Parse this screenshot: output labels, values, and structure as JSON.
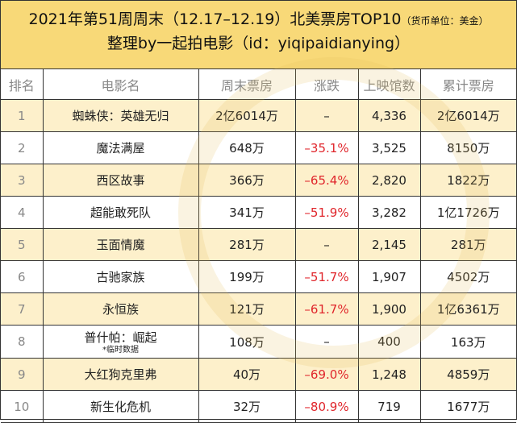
{
  "title": {
    "line1": "2021年第51周周末（12.17–12.19）北美票房TOP10",
    "currency_note": "（货币单位：美金）",
    "line2": "整理by一起拍电影（id：yiqipaidianying）"
  },
  "watermark": "一起拍电影",
  "columns": [
    "排名",
    "电影名",
    "周末票房",
    "涨跌",
    "上映馆数",
    "累计票房"
  ],
  "rows": [
    {
      "rank": "1",
      "name": "蜘蛛侠：英雄无归",
      "note": "",
      "weekend": "2亿6014万",
      "change": "–",
      "theaters": "4,336",
      "total": "2亿6014万"
    },
    {
      "rank": "2",
      "name": "魔法满屋",
      "note": "",
      "weekend": "648万",
      "change": "–35.1%",
      "theaters": "3,525",
      "total": "8150万"
    },
    {
      "rank": "3",
      "name": "西区故事",
      "note": "",
      "weekend": "366万",
      "change": "–65.4%",
      "theaters": "2,820",
      "total": "1822万"
    },
    {
      "rank": "4",
      "name": "超能敢死队",
      "note": "",
      "weekend": "341万",
      "change": "–51.9%",
      "theaters": "3,282",
      "total": "1亿1726万"
    },
    {
      "rank": "5",
      "name": "玉面情魔",
      "note": "",
      "weekend": "281万",
      "change": "–",
      "theaters": "2,145",
      "total": "281万"
    },
    {
      "rank": "6",
      "name": "古驰家族",
      "note": "",
      "weekend": "199万",
      "change": "–51.7%",
      "theaters": "1,907",
      "total": "4502万"
    },
    {
      "rank": "7",
      "name": "永恒族",
      "note": "",
      "weekend": "121万",
      "change": "–61.7%",
      "theaters": "1,900",
      "total": "1亿6361万"
    },
    {
      "rank": "8",
      "name": "普什帕：崛起",
      "note": "*临时数据",
      "weekend": "108万",
      "change": "–",
      "theaters": "400",
      "total": "163万"
    },
    {
      "rank": "9",
      "name": "大红狗克里弗",
      "note": "",
      "weekend": "40万",
      "change": "–69.0%",
      "theaters": "1,248",
      "total": "4859万"
    },
    {
      "rank": "10",
      "name": "新生化危机",
      "note": "",
      "weekend": "32万",
      "change": "–80.9%",
      "theaters": "719",
      "total": "1677万"
    }
  ],
  "colors": {
    "header_bg": "#f8d978",
    "odd_row_bg": "#fdf0cb",
    "negative": "#e0262c"
  }
}
